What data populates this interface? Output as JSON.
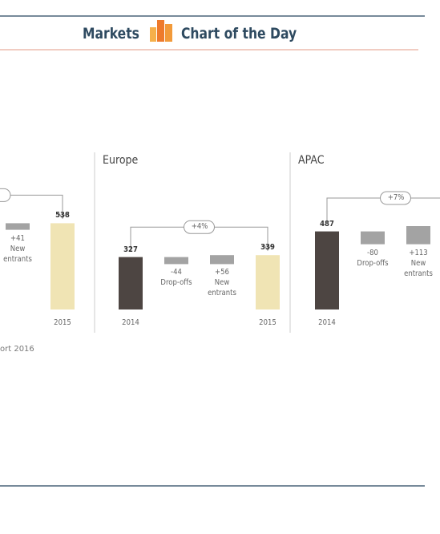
{
  "header": {
    "left": "Markets",
    "right": "Chart of the Day"
  },
  "source": "ort 2016",
  "chart_data": [
    {
      "type": "waterfall",
      "growth_label": "%",
      "categories": [
        "New entrants",
        "2015"
      ],
      "values": [
        41,
        538
      ],
      "value_labels": [
        "+41",
        null
      ],
      "ylim": [
        0,
        600
      ],
      "colors": {
        "start": "#4d4542",
        "delta": "#a3a3a3",
        "end": "#f0e4b4"
      }
    },
    {
      "type": "waterfall",
      "title": "Europe",
      "growth_label": "+4%",
      "categories": [
        "2014",
        "Drop-offs",
        "New entrants",
        "2015"
      ],
      "values": [
        327,
        -44,
        56,
        339
      ],
      "value_labels": [
        null,
        "-44",
        "+56",
        null
      ],
      "ylim": [
        0,
        600
      ],
      "colors": {
        "start": "#4d4542",
        "delta": "#a3a3a3",
        "end": "#f0e4b4"
      }
    },
    {
      "type": "waterfall",
      "title": "APAC",
      "growth_label": "+7%",
      "categories": [
        "2014",
        "Drop-offs",
        "New entrants"
      ],
      "values": [
        487,
        -80,
        113
      ],
      "value_labels": [
        null,
        "-80",
        "+113"
      ],
      "ylim": [
        0,
        600
      ],
      "colors": {
        "start": "#4d4542",
        "delta": "#a3a3a3",
        "end": "#f0e4b4"
      }
    }
  ]
}
